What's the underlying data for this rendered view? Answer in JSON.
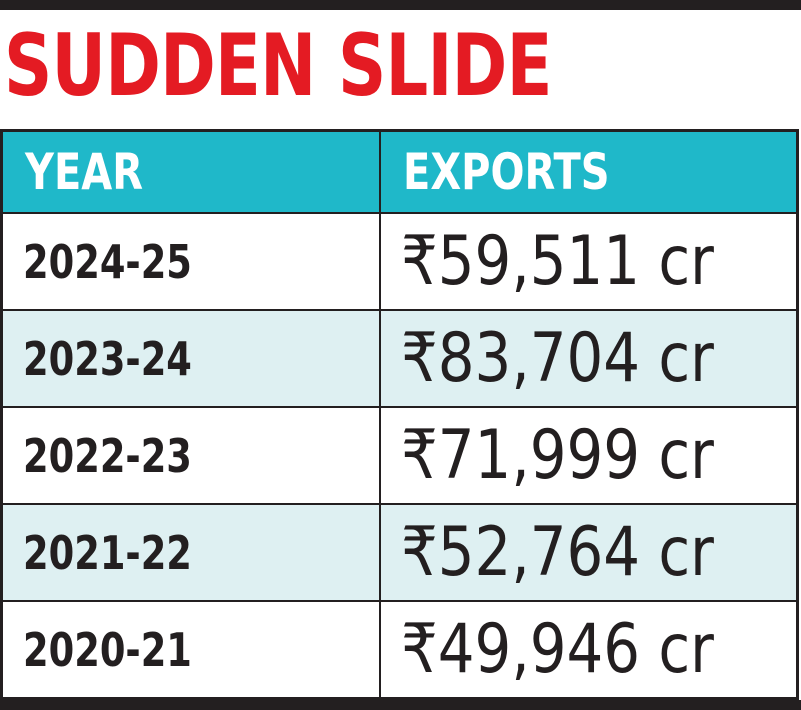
{
  "chart_data": {
    "type": "table",
    "title": "SUDDEN SLIDE",
    "columns": [
      "YEAR",
      "EXPORTS"
    ],
    "rows": [
      {
        "year": "2024-25",
        "exports": "₹59,511 cr",
        "value_cr": 59511
      },
      {
        "year": "2023-24",
        "exports": "₹83,704 cr",
        "value_cr": 83704
      },
      {
        "year": "2022-23",
        "exports": "₹71,999 cr",
        "value_cr": 71999
      },
      {
        "year": "2021-22",
        "exports": "₹52,764 cr",
        "value_cr": 52764
      },
      {
        "year": "2020-21",
        "exports": "₹49,946 cr",
        "value_cr": 49946
      }
    ]
  },
  "colors": {
    "title": "#e41b23",
    "header_bg": "#1fb8c9",
    "row_tint": "#def0f2",
    "border": "#231f20"
  }
}
